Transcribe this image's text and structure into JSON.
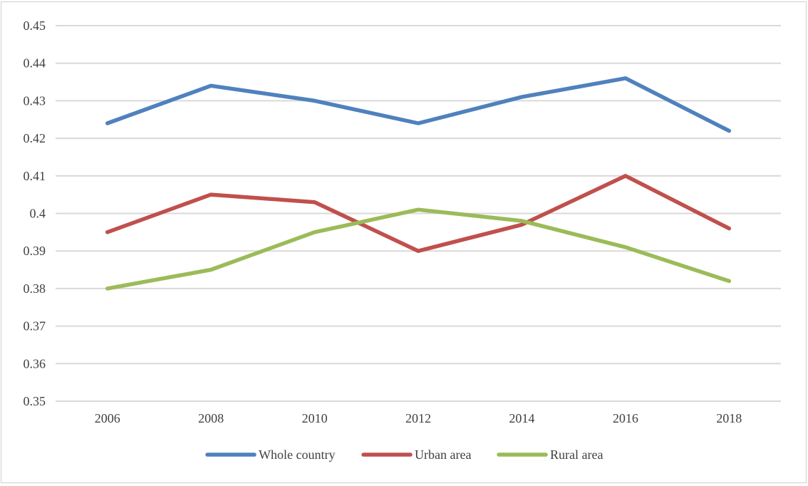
{
  "chart_data": {
    "type": "line",
    "title": "",
    "xlabel": "",
    "ylabel": "",
    "categories": [
      "2006",
      "2008",
      "2010",
      "2012",
      "2014",
      "2016",
      "2018"
    ],
    "ylim": [
      0.35,
      0.45
    ],
    "yticks": [
      "0.35",
      "0.36",
      "0.37",
      "0.38",
      "0.39",
      "0.4",
      "0.41",
      "0.42",
      "0.43",
      "0.44",
      "0.45"
    ],
    "grid": true,
    "legend_position": "bottom",
    "series": [
      {
        "name": "Whole country",
        "color": "#4f81bd",
        "values": [
          0.424,
          0.434,
          0.43,
          0.424,
          0.431,
          0.436,
          0.422
        ]
      },
      {
        "name": "Urban area",
        "color": "#c0504d",
        "values": [
          0.395,
          0.405,
          0.403,
          0.39,
          0.397,
          0.41,
          0.396
        ]
      },
      {
        "name": "Rural area",
        "color": "#9bbb59",
        "values": [
          0.38,
          0.385,
          0.395,
          0.401,
          0.398,
          0.391,
          0.382
        ]
      }
    ]
  }
}
